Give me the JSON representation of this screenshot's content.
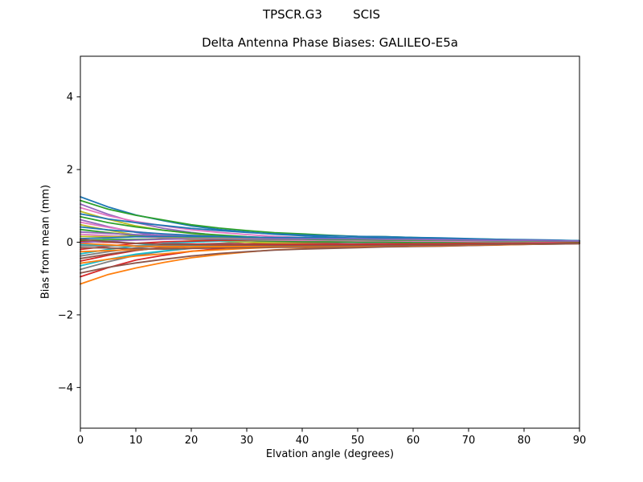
{
  "figure": {
    "background": "#ffffff"
  },
  "chart_data": {
    "type": "line",
    "title": "TPSCR.G3        SCIS",
    "subtitle": "Delta Antenna Phase Biases: GALILEO-E5a",
    "xlabel": "Elvation angle (degrees)",
    "ylabel": "Bias from mean (mm)",
    "xlim": [
      0,
      90
    ],
    "ylim": [
      -5.12,
      5.12
    ],
    "x_ticks": [
      0,
      10,
      20,
      30,
      40,
      50,
      60,
      70,
      80,
      90
    ],
    "y_ticks": [
      -4,
      -2,
      0,
      2,
      4
    ],
    "grid": false,
    "legend_position": "none",
    "line_width": 1.8,
    "palette": [
      "#1f77b4",
      "#ff7f0e",
      "#2ca02c",
      "#d62728",
      "#9467bd",
      "#8c564b",
      "#e377c2",
      "#7f7f7f",
      "#bcbd22",
      "#17becf"
    ],
    "x": [
      0,
      5,
      10,
      15,
      20,
      25,
      30,
      35,
      40,
      45,
      50,
      55,
      60,
      65,
      70,
      75,
      80,
      85,
      90
    ],
    "series": [
      {
        "color": "#1f77b4",
        "y": [
          1.25,
          0.97,
          0.75,
          0.59,
          0.45,
          0.35,
          0.28,
          0.22,
          0.18,
          0.14,
          0.11,
          0.1,
          0.08,
          0.07,
          0.05,
          0.04,
          0.04,
          0.03,
          0.02
        ]
      },
      {
        "color": "#ff7f0e",
        "y": [
          -1.15,
          -0.89,
          -0.71,
          -0.56,
          -0.43,
          -0.34,
          -0.27,
          -0.21,
          -0.18,
          -0.14,
          -0.12,
          -0.1,
          -0.09,
          -0.08,
          -0.06,
          -0.05,
          -0.04,
          -0.03,
          -0.03
        ]
      },
      {
        "color": "#2ca02c",
        "y": [
          1.15,
          0.91,
          0.74,
          0.61,
          0.48,
          0.39,
          0.32,
          0.26,
          0.23,
          0.19,
          0.16,
          0.15,
          0.13,
          0.11,
          0.09,
          0.08,
          0.06,
          0.05,
          0.04
        ]
      },
      {
        "color": "#d62728",
        "y": [
          -0.95,
          -0.7,
          -0.49,
          -0.36,
          -0.25,
          -0.18,
          -0.12,
          -0.07,
          -0.04,
          -0.02,
          0.0,
          0.01,
          0.01,
          0.02,
          0.02,
          0.02,
          0.02,
          0.02,
          0.01
        ]
      },
      {
        "color": "#9467bd",
        "y": [
          1.05,
          0.77,
          0.54,
          0.38,
          0.27,
          0.18,
          0.12,
          0.07,
          0.04,
          0.0,
          -0.01,
          -0.02,
          -0.03,
          -0.03,
          -0.04,
          -0.03,
          -0.03,
          -0.02,
          -0.02
        ]
      },
      {
        "color": "#8c564b",
        "y": [
          -0.85,
          -0.69,
          -0.57,
          -0.47,
          -0.38,
          -0.31,
          -0.26,
          -0.22,
          -0.19,
          -0.17,
          -0.15,
          -0.13,
          -0.12,
          -0.11,
          -0.09,
          -0.07,
          -0.06,
          -0.05,
          -0.04
        ]
      },
      {
        "color": "#e377c2",
        "y": [
          0.95,
          0.73,
          0.57,
          0.45,
          0.34,
          0.27,
          0.21,
          0.16,
          0.13,
          0.11,
          0.09,
          0.07,
          0.06,
          0.05,
          0.04,
          0.03,
          0.03,
          0.02,
          0.02
        ]
      },
      {
        "color": "#7f7f7f",
        "y": [
          -0.75,
          -0.54,
          -0.36,
          -0.25,
          -0.17,
          -0.11,
          -0.06,
          -0.03,
          0.0,
          0.02,
          0.03,
          0.04,
          0.04,
          0.04,
          0.04,
          0.04,
          0.03,
          0.03,
          0.02
        ]
      },
      {
        "color": "#bcbd22",
        "y": [
          0.85,
          0.63,
          0.45,
          0.33,
          0.24,
          0.17,
          0.12,
          0.08,
          0.05,
          0.03,
          0.01,
          0.0,
          -0.01,
          -0.01,
          -0.01,
          -0.01,
          -0.01,
          -0.01,
          -0.01
        ]
      },
      {
        "color": "#17becf",
        "y": [
          -0.65,
          -0.47,
          -0.33,
          -0.24,
          -0.16,
          -0.11,
          -0.07,
          -0.04,
          -0.02,
          0.0,
          0.01,
          0.01,
          0.02,
          0.02,
          0.02,
          0.02,
          0.02,
          0.01,
          0.01
        ]
      },
      {
        "color": "#1f77b4",
        "y": [
          0.78,
          0.64,
          0.54,
          0.46,
          0.38,
          0.32,
          0.27,
          0.23,
          0.2,
          0.18,
          0.16,
          0.15,
          0.13,
          0.12,
          0.1,
          0.08,
          0.07,
          0.06,
          0.04
        ]
      },
      {
        "color": "#ff7f0e",
        "y": [
          -0.58,
          -0.47,
          -0.38,
          -0.32,
          -0.25,
          -0.21,
          -0.17,
          -0.14,
          -0.12,
          -0.11,
          -0.09,
          -0.08,
          -0.07,
          -0.07,
          -0.05,
          -0.04,
          -0.04,
          -0.03,
          -0.02
        ]
      },
      {
        "color": "#2ca02c",
        "y": [
          0.7,
          0.54,
          0.42,
          0.33,
          0.25,
          0.2,
          0.15,
          0.12,
          0.1,
          0.08,
          0.06,
          0.05,
          0.04,
          0.04,
          0.03,
          0.02,
          0.02,
          0.01,
          0.01
        ]
      },
      {
        "color": "#d62728",
        "y": [
          -0.52,
          -0.36,
          -0.23,
          -0.14,
          -0.08,
          -0.04,
          0.0,
          0.02,
          0.03,
          0.05,
          0.05,
          0.06,
          0.06,
          0.06,
          0.05,
          0.05,
          0.04,
          0.03,
          0.02
        ]
      },
      {
        "color": "#9467bd",
        "y": [
          0.62,
          0.43,
          0.27,
          0.16,
          0.09,
          0.04,
          0.01,
          -0.02,
          -0.04,
          -0.06,
          -0.07,
          -0.07,
          -0.07,
          -0.07,
          -0.07,
          -0.06,
          -0.05,
          -0.04,
          -0.03
        ]
      },
      {
        "color": "#8c564b",
        "y": [
          -0.45,
          -0.33,
          -0.22,
          -0.16,
          -0.11,
          -0.07,
          -0.05,
          -0.02,
          -0.01,
          0.0,
          0.01,
          0.01,
          0.02,
          0.02,
          0.02,
          0.02,
          0.01,
          0.01,
          0.01
        ]
      },
      {
        "color": "#e377c2",
        "y": [
          0.55,
          0.41,
          0.29,
          0.21,
          0.15,
          0.11,
          0.07,
          0.05,
          0.03,
          0.01,
          0.0,
          -0.01,
          -0.01,
          -0.01,
          -0.01,
          -0.01,
          -0.01,
          -0.01,
          0.0
        ]
      },
      {
        "color": "#7f7f7f",
        "y": [
          -0.38,
          -0.26,
          -0.16,
          -0.1,
          -0.06,
          -0.03,
          0.0,
          0.02,
          0.03,
          0.04,
          0.04,
          0.05,
          0.04,
          0.04,
          0.04,
          0.04,
          0.03,
          0.02,
          0.02
        ]
      },
      {
        "color": "#bcbd22",
        "y": [
          0.48,
          0.33,
          0.2,
          0.12,
          0.07,
          0.03,
          0.0,
          -0.02,
          -0.04,
          -0.05,
          -0.06,
          -0.06,
          -0.06,
          -0.06,
          -0.05,
          -0.05,
          -0.04,
          -0.03,
          -0.02
        ]
      },
      {
        "color": "#17becf",
        "y": [
          -0.32,
          -0.2,
          -0.1,
          -0.03,
          0.0,
          0.03,
          0.05,
          0.07,
          0.08,
          0.08,
          0.09,
          0.08,
          0.08,
          0.08,
          0.07,
          0.06,
          0.05,
          0.04,
          0.03
        ]
      },
      {
        "color": "#1f77b4",
        "y": [
          0.42,
          0.34,
          0.28,
          0.23,
          0.19,
          0.16,
          0.13,
          0.11,
          0.1,
          0.08,
          0.07,
          0.07,
          0.06,
          0.05,
          0.04,
          0.04,
          0.03,
          0.02,
          0.02
        ]
      },
      {
        "color": "#ff7f0e",
        "y": [
          -0.26,
          -0.23,
          -0.2,
          -0.18,
          -0.16,
          -0.14,
          -0.12,
          -0.11,
          -0.1,
          -0.09,
          -0.08,
          -0.07,
          -0.07,
          -0.06,
          -0.05,
          -0.04,
          -0.04,
          -0.03,
          -0.02
        ]
      },
      {
        "color": "#2ca02c",
        "y": [
          0.35,
          0.26,
          0.18,
          0.13,
          0.1,
          0.07,
          0.05,
          0.03,
          0.02,
          0.01,
          0.0,
          0.0,
          -0.01,
          -0.01,
          -0.01,
          -0.01,
          -0.01,
          0.0,
          0.0
        ]
      },
      {
        "color": "#d62728",
        "y": [
          -0.2,
          -0.11,
          -0.03,
          0.01,
          0.03,
          0.05,
          0.06,
          0.07,
          0.08,
          0.08,
          0.08,
          0.08,
          0.08,
          0.07,
          0.07,
          0.06,
          0.05,
          0.04,
          0.03
        ]
      },
      {
        "color": "#9467bd",
        "y": [
          0.28,
          0.24,
          0.21,
          0.18,
          0.15,
          0.13,
          0.11,
          0.1,
          0.09,
          0.08,
          0.08,
          0.07,
          0.06,
          0.06,
          0.05,
          0.04,
          0.03,
          0.03,
          0.02
        ]
      },
      {
        "color": "#8c564b",
        "y": [
          -0.15,
          -0.16,
          -0.18,
          -0.19,
          -0.17,
          -0.16,
          -0.15,
          -0.14,
          -0.14,
          -0.13,
          -0.12,
          -0.12,
          -0.11,
          -0.1,
          -0.09,
          -0.08,
          -0.06,
          -0.05,
          -0.04
        ]
      },
      {
        "color": "#e377c2",
        "y": [
          0.22,
          0.18,
          0.15,
          0.13,
          0.1,
          0.09,
          0.07,
          0.06,
          0.05,
          0.05,
          0.04,
          0.04,
          0.03,
          0.03,
          0.02,
          0.02,
          0.02,
          0.01,
          0.01
        ]
      },
      {
        "color": "#7f7f7f",
        "y": [
          -0.1,
          -0.1,
          -0.1,
          -0.09,
          -0.08,
          -0.08,
          -0.07,
          -0.06,
          -0.06,
          -0.05,
          -0.05,
          -0.05,
          -0.04,
          -0.04,
          -0.04,
          -0.03,
          -0.03,
          -0.02,
          -0.02
        ]
      },
      {
        "color": "#bcbd22",
        "y": [
          0.16,
          0.15,
          0.16,
          0.15,
          0.13,
          0.12,
          0.11,
          0.1,
          0.1,
          0.09,
          0.09,
          0.08,
          0.08,
          0.07,
          0.06,
          0.05,
          0.04,
          0.03,
          0.02
        ]
      },
      {
        "color": "#17becf",
        "y": [
          -0.06,
          -0.08,
          -0.11,
          -0.12,
          -0.11,
          -0.1,
          -0.1,
          -0.1,
          -0.1,
          -0.09,
          -0.09,
          -0.08,
          -0.08,
          -0.07,
          -0.06,
          -0.06,
          -0.05,
          -0.04,
          -0.03
        ]
      },
      {
        "color": "#1f77b4",
        "y": [
          0.1,
          0.12,
          0.15,
          0.16,
          0.15,
          0.15,
          0.14,
          0.13,
          0.13,
          0.12,
          0.12,
          0.11,
          0.1,
          0.1,
          0.09,
          0.07,
          0.06,
          0.05,
          0.04
        ]
      },
      {
        "color": "#ff7f0e",
        "y": [
          -0.03,
          -0.07,
          -0.11,
          -0.12,
          -0.12,
          -0.12,
          -0.12,
          -0.11,
          -0.11,
          -0.11,
          -0.11,
          -0.1,
          -0.09,
          -0.09,
          -0.08,
          -0.07,
          -0.06,
          -0.04,
          -0.03
        ]
      },
      {
        "color": "#2ca02c",
        "y": [
          0.05,
          0.07,
          0.08,
          0.09,
          0.09,
          0.08,
          0.08,
          0.08,
          0.08,
          0.07,
          0.07,
          0.06,
          0.06,
          0.06,
          0.05,
          0.04,
          0.04,
          0.03,
          0.02
        ]
      },
      {
        "color": "#d62728",
        "y": [
          0.02,
          0.0,
          -0.03,
          -0.05,
          -0.05,
          -0.06,
          -0.06,
          -0.06,
          -0.06,
          -0.06,
          -0.06,
          -0.05,
          -0.05,
          -0.05,
          -0.04,
          -0.04,
          -0.03,
          -0.02,
          -0.02
        ]
      },
      {
        "color": "#9467bd",
        "y": [
          -0.01,
          0.03,
          0.06,
          0.08,
          0.09,
          0.09,
          0.09,
          0.09,
          0.09,
          0.09,
          0.09,
          0.08,
          0.08,
          0.07,
          0.06,
          0.05,
          0.05,
          0.04,
          0.03
        ]
      },
      {
        "color": "#8c564b",
        "y": [
          0.08,
          0.02,
          -0.03,
          -0.06,
          -0.07,
          -0.08,
          -0.08,
          -0.09,
          -0.09,
          -0.09,
          -0.09,
          -0.09,
          -0.08,
          -0.08,
          -0.07,
          -0.06,
          -0.05,
          -0.04,
          -0.03
        ]
      }
    ]
  }
}
